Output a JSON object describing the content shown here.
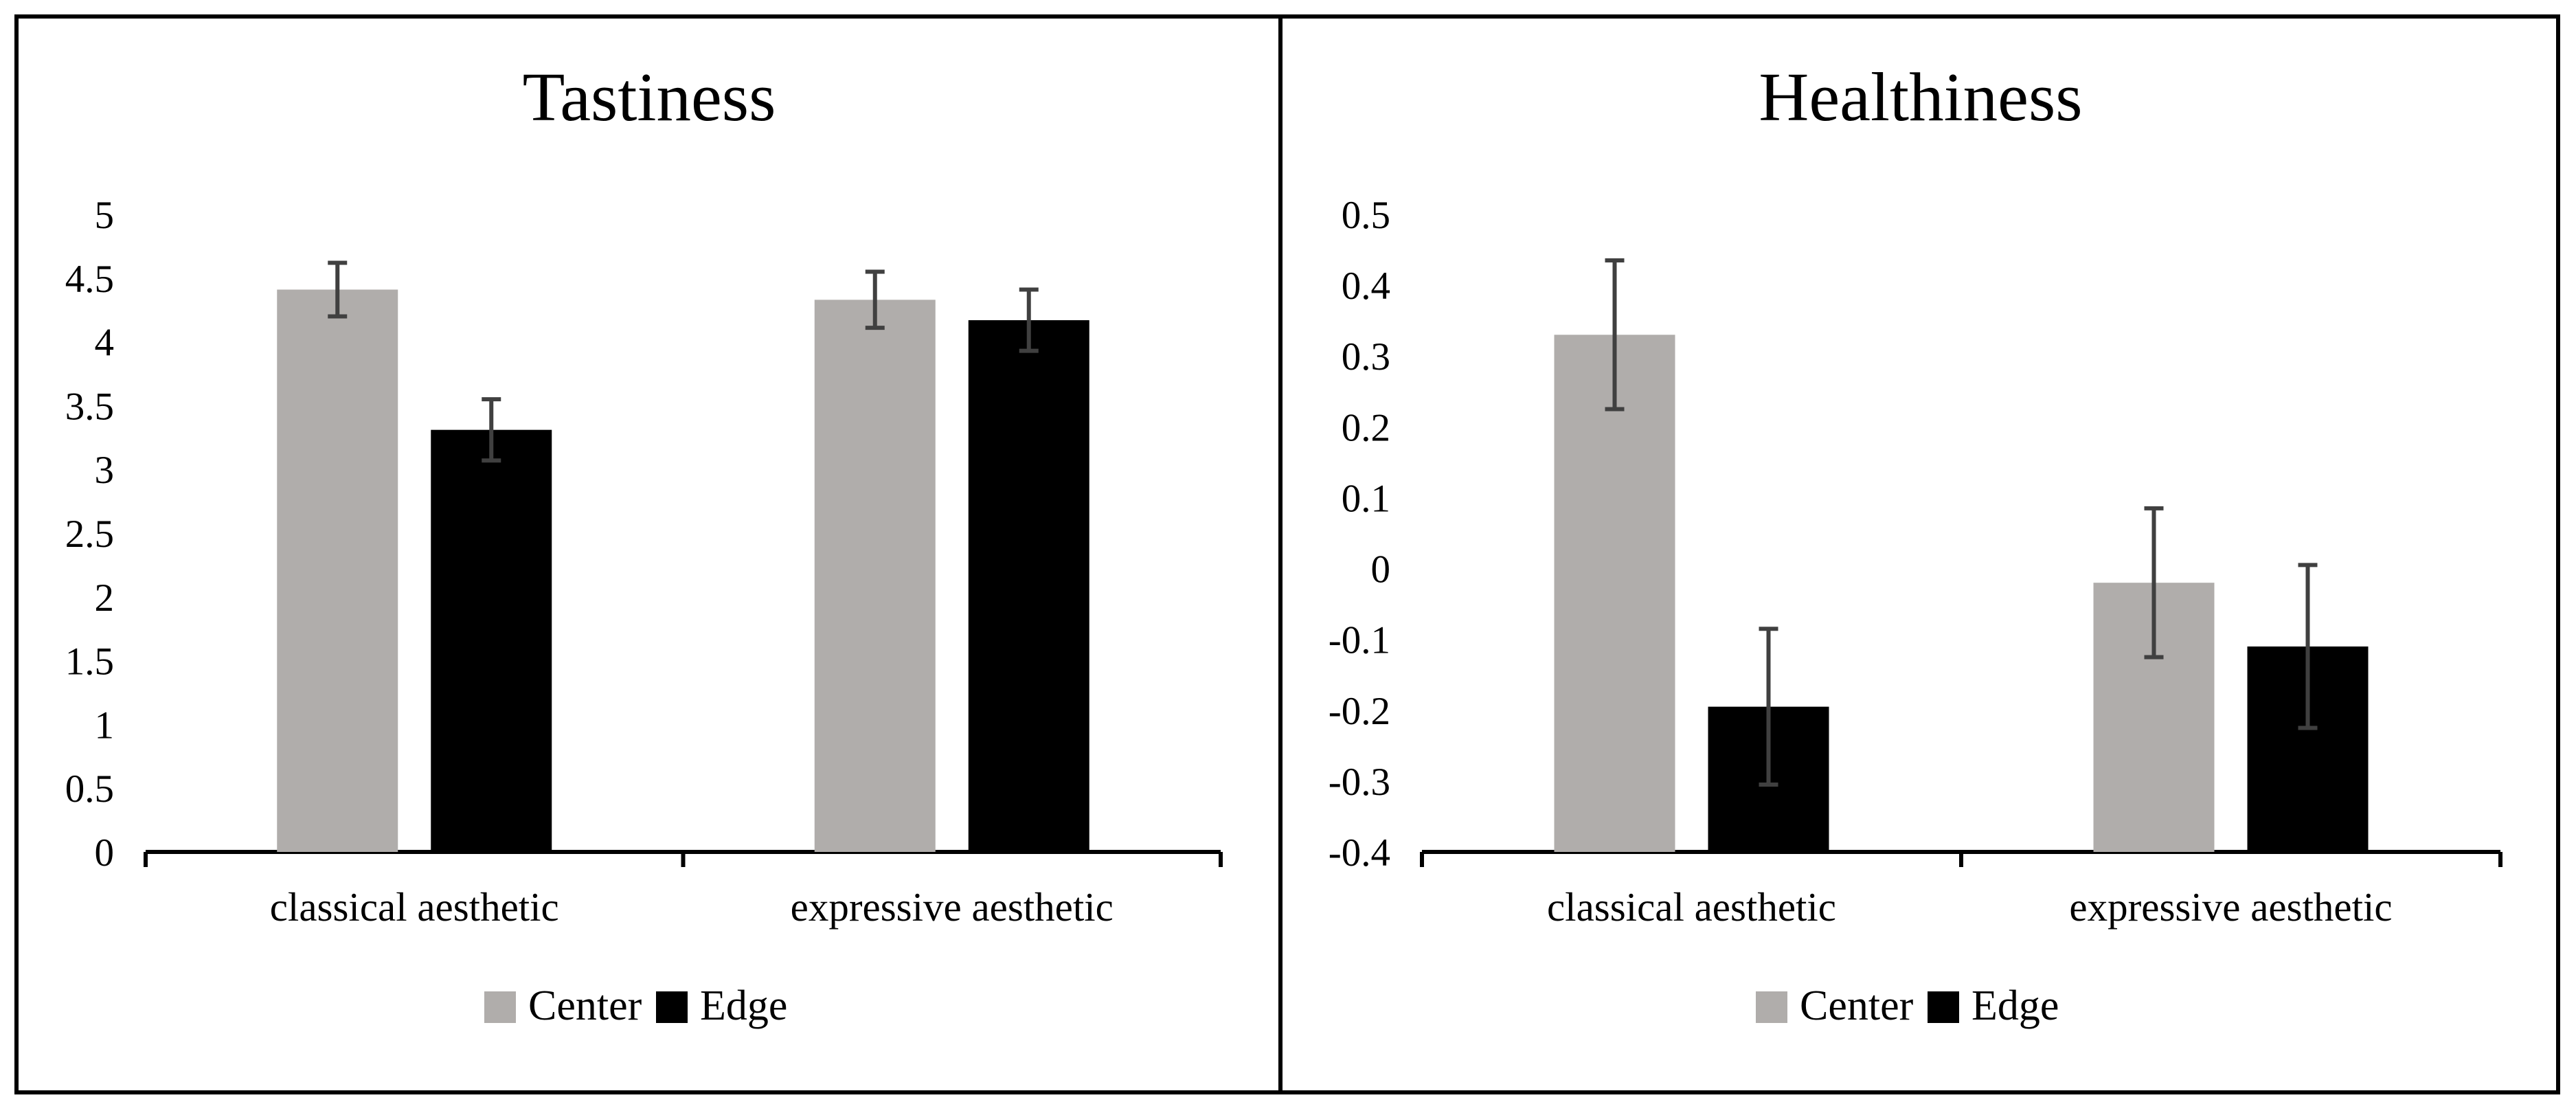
{
  "colors": {
    "center": "#b0adab",
    "edge": "#000000",
    "error_bar": "#404040",
    "axis": "#000000",
    "frame": "#000000"
  },
  "chart_data": [
    {
      "type": "bar",
      "title": "Tastiness",
      "xlabel": "",
      "ylabel": "",
      "categories": [
        "classical aesthetic",
        "expressive aesthetic"
      ],
      "series": [
        {
          "name": "Center",
          "values": [
            4.41,
            4.33
          ],
          "errors": [
            0.21,
            0.22
          ]
        },
        {
          "name": "Edge",
          "values": [
            3.31,
            4.17
          ],
          "errors": [
            0.24,
            0.24
          ]
        }
      ],
      "ylim": [
        0,
        5
      ],
      "yticks": [
        0,
        0.5,
        1,
        1.5,
        2,
        2.5,
        3,
        3.5,
        4,
        4.5,
        5
      ],
      "ytick_labels": [
        "0",
        "0.5",
        "1",
        "1.5",
        "2",
        "2.5",
        "3",
        "3.5",
        "4",
        "4.5",
        "5"
      ],
      "grid": false,
      "legend_position": "bottom-center"
    },
    {
      "type": "bar",
      "title": "Healthiness",
      "xlabel": "",
      "ylabel": "",
      "categories": [
        "classical aesthetic",
        "expressive aesthetic"
      ],
      "series": [
        {
          "name": "Center",
          "values": [
            0.33,
            -0.02
          ],
          "errors": [
            0.105,
            0.105
          ]
        },
        {
          "name": "Edge",
          "values": [
            -0.195,
            -0.11
          ],
          "errors": [
            0.11,
            0.115
          ]
        }
      ],
      "ylim": [
        -0.4,
        0.5
      ],
      "yticks": [
        -0.4,
        -0.3,
        -0.2,
        -0.1,
        0,
        0.1,
        0.2,
        0.3,
        0.4,
        0.5
      ],
      "ytick_labels": [
        "-0.4",
        "-0.3",
        "-0.2",
        "-0.1",
        "0",
        "0.1",
        "0.2",
        "0.3",
        "0.4",
        "0.5"
      ],
      "grid": false,
      "legend_position": "bottom-center"
    }
  ]
}
